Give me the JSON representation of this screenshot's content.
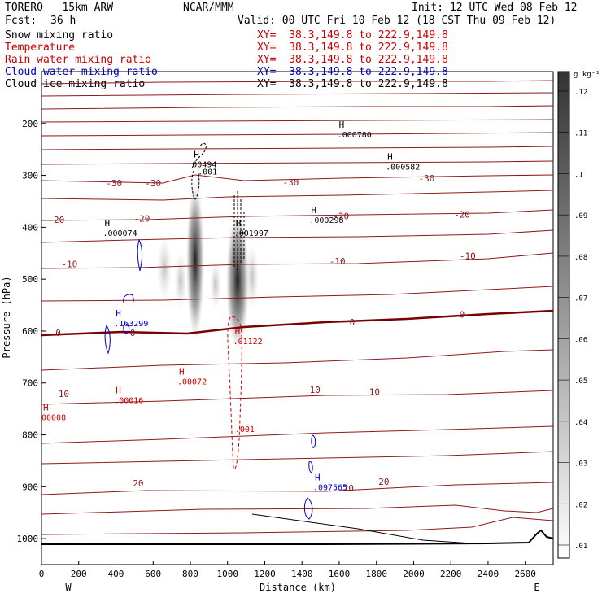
{
  "header": {
    "model": "TORERO   15km ARW",
    "center": "NCAR/MMM",
    "init": "Init: 12 UTC Wed 08 Feb 12",
    "fcst_label": "Fcst:",
    "fcst_value": "36 h",
    "valid": "Valid: 00 UTC Fri 10 Feb 12 (18 CST Thu 09 Feb 12)"
  },
  "fields": [
    {
      "name": "Snow mixing ratio",
      "xy": "XY=  38.3,149.8 to 222.9,149.8",
      "color": "#000000",
      "xycolor": "#cc0000"
    },
    {
      "name": "Temperature",
      "xy": "XY=  38.3,149.8 to 222.9,149.8",
      "color": "#cc0000",
      "xycolor": "#cc0000"
    },
    {
      "name": "Rain water mixing ratio",
      "xy": "XY=  38.3,149.8 to 222.9,149.8",
      "color": "#cc0000",
      "xycolor": "#cc0000"
    },
    {
      "name": "Cloud water mixing ratio",
      "xy": "XY=  38.3,149.8 to 222.9,149.8",
      "color": "#0000cc",
      "xycolor": "#0000cc"
    },
    {
      "name": "Cloud ice mixing ratio",
      "xy": "XY=  38.3,149.8 to 222.9,149.8",
      "color": "#000000",
      "xycolor": "#000000"
    }
  ],
  "colors": {
    "temperature": "#8b1a1a",
    "rain": "#cc0000",
    "cloud_water": "#0000cc",
    "snow": "#000000",
    "terrain": "#000000"
  },
  "chart_data": {
    "type": "cross-section",
    "xlabel": "Distance (km)",
    "ylabel": "Pressure (hPa)",
    "x_end_labels": [
      "W",
      "E"
    ],
    "xlim": [
      0,
      2750
    ],
    "ylim": [
      1050,
      100
    ],
    "xticks": [
      0,
      200,
      400,
      600,
      800,
      1000,
      1200,
      1400,
      1600,
      1800,
      2000,
      2200,
      2400,
      2600
    ],
    "yticks": [
      200,
      300,
      400,
      500,
      600,
      700,
      800,
      900,
      1000
    ],
    "colorbar": {
      "unit": "g kg⁻¹",
      "ticks": [
        ".01",
        ".02",
        ".03",
        ".04",
        ".05",
        ".06",
        ".07",
        ".08",
        ".09",
        ".1",
        ".11",
        ".12"
      ]
    },
    "temperature_labels": [
      {
        "text": "-30",
        "x": 390,
        "p": 315
      },
      {
        "text": "-30",
        "x": 600,
        "p": 315
      },
      {
        "text": "-30",
        "x": 1340,
        "p": 313
      },
      {
        "text": "-30",
        "x": 2070,
        "p": 305
      },
      {
        "text": "-20",
        "x": 80,
        "p": 385
      },
      {
        "text": "-20",
        "x": 540,
        "p": 383
      },
      {
        "text": "-20",
        "x": 1610,
        "p": 378
      },
      {
        "text": "-20",
        "x": 2260,
        "p": 375
      },
      {
        "text": "-10",
        "x": 150,
        "p": 471
      },
      {
        "text": "-10",
        "x": 1590,
        "p": 465
      },
      {
        "text": "-10",
        "x": 2290,
        "p": 455
      },
      {
        "text": "0",
        "x": 90,
        "p": 603
      },
      {
        "text": "0",
        "x": 490,
        "p": 603
      },
      {
        "text": "0",
        "x": 1670,
        "p": 583
      },
      {
        "text": "0",
        "x": 2260,
        "p": 568
      },
      {
        "text": "10",
        "x": 120,
        "p": 721
      },
      {
        "text": "10",
        "x": 1790,
        "p": 717
      },
      {
        "text": "10",
        "x": 1470,
        "p": 713
      },
      {
        "text": "20",
        "x": 520,
        "p": 893
      },
      {
        "text": "20",
        "x": 1650,
        "p": 903
      },
      {
        "text": "20",
        "x": 1840,
        "p": 890
      }
    ],
    "maxima": [
      {
        "label": "H",
        "value": ".000780",
        "x": 1590,
        "p": 208,
        "color": "#000000"
      },
      {
        "label": "H",
        "value": "00494",
        "x": 810,
        "p": 265,
        "color": "#000000"
      },
      {
        "label": "H",
        "value": ".000582",
        "x": 1850,
        "p": 270,
        "color": "#000000"
      },
      {
        "label": "H",
        "value": ".000298",
        "x": 1440,
        "p": 373,
        "color": "#000000"
      },
      {
        "label": "H",
        "value": ".000074",
        "x": 330,
        "p": 398,
        "color": "#000000"
      },
      {
        "label": "H",
        "value": ".001997",
        "x": 1035,
        "p": 398,
        "color": "#000000"
      },
      {
        "label": "H",
        "value": ".163299",
        "x": 390,
        "p": 572,
        "color": "#0000cc"
      },
      {
        "label": "H",
        "value": ".01122",
        "x": 1030,
        "p": 606,
        "color": "#cc0000"
      },
      {
        "label": "H",
        "value": ".00072",
        "x": 730,
        "p": 684,
        "color": "#cc0000"
      },
      {
        "label": "H",
        "value": ".00016",
        "x": 390,
        "p": 720,
        "color": "#cc0000"
      },
      {
        "label": "H",
        "value": "00008",
        "x": 0,
        "p": 753,
        "color": "#cc0000"
      },
      {
        "label": "H",
        "value": ".097565",
        "x": 1460,
        "p": 888,
        "color": "#0000cc"
      }
    ],
    "contour_labels": [
      {
        "text": ".001",
        "x": 840,
        "p": 292,
        "color": "#000000"
      },
      {
        "text": ".001",
        "x": 1040,
        "p": 788,
        "color": "#cc0000"
      }
    ]
  }
}
